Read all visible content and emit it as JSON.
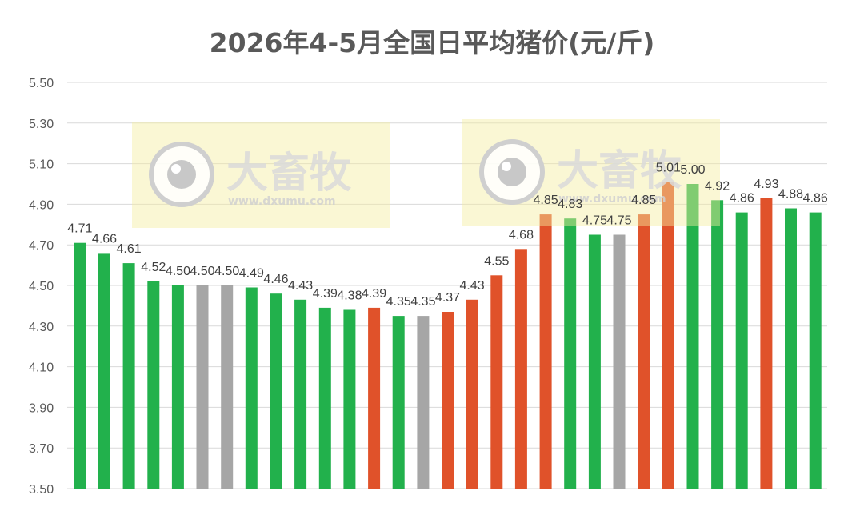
{
  "title": "2026年4-5月全国日平均猪价(元/斤)",
  "watermark": {
    "brand": "大畜牧",
    "url": "www.dxumu.com"
  },
  "colors": {
    "rise": "#e0522a",
    "fall": "#22b14c",
    "flat": "#a6a6a6"
  },
  "chart_data": {
    "type": "bar",
    "title": "2026年4-5月全国日平均猪价(元/斤)",
    "xlabel": "",
    "ylabel": "",
    "ylim": [
      3.5,
      5.5
    ],
    "yticks": [
      "5.50",
      "5.30",
      "5.10",
      "4.90",
      "4.70",
      "4.50",
      "4.30",
      "4.10",
      "3.90",
      "3.70",
      "3.50"
    ],
    "grid": true,
    "legend": "none",
    "values": [
      4.71,
      4.66,
      4.61,
      4.52,
      4.5,
      4.5,
      4.5,
      4.49,
      4.46,
      4.43,
      4.39,
      4.38,
      4.39,
      4.35,
      4.35,
      4.37,
      4.43,
      4.55,
      4.68,
      4.85,
      4.83,
      4.75,
      4.75,
      4.85,
      5.01,
      5.0,
      4.92,
      4.86,
      4.93,
      4.88,
      4.86
    ],
    "labels": [
      "4.71",
      "4.66",
      "4.61",
      "4.52",
      "4.50",
      "4.50",
      "4.50",
      "4.49",
      "4.46",
      "4.43",
      "4.39",
      "4.38",
      "4.39",
      "4.35",
      "4.35",
      "4.37",
      "4.43",
      "4.55",
      "4.68",
      "4.85",
      "4.83",
      "4.75",
      "4.75",
      "4.85",
      "5.01",
      "5.00",
      "4.92",
      "4.86",
      "4.93",
      "4.88",
      "4.86"
    ],
    "bar_colors": [
      "fall",
      "fall",
      "fall",
      "fall",
      "fall",
      "flat",
      "flat",
      "fall",
      "fall",
      "fall",
      "fall",
      "fall",
      "rise",
      "fall",
      "flat",
      "rise",
      "rise",
      "rise",
      "rise",
      "rise",
      "fall",
      "fall",
      "flat",
      "rise",
      "rise",
      "fall",
      "fall",
      "fall",
      "rise",
      "fall",
      "fall"
    ]
  }
}
